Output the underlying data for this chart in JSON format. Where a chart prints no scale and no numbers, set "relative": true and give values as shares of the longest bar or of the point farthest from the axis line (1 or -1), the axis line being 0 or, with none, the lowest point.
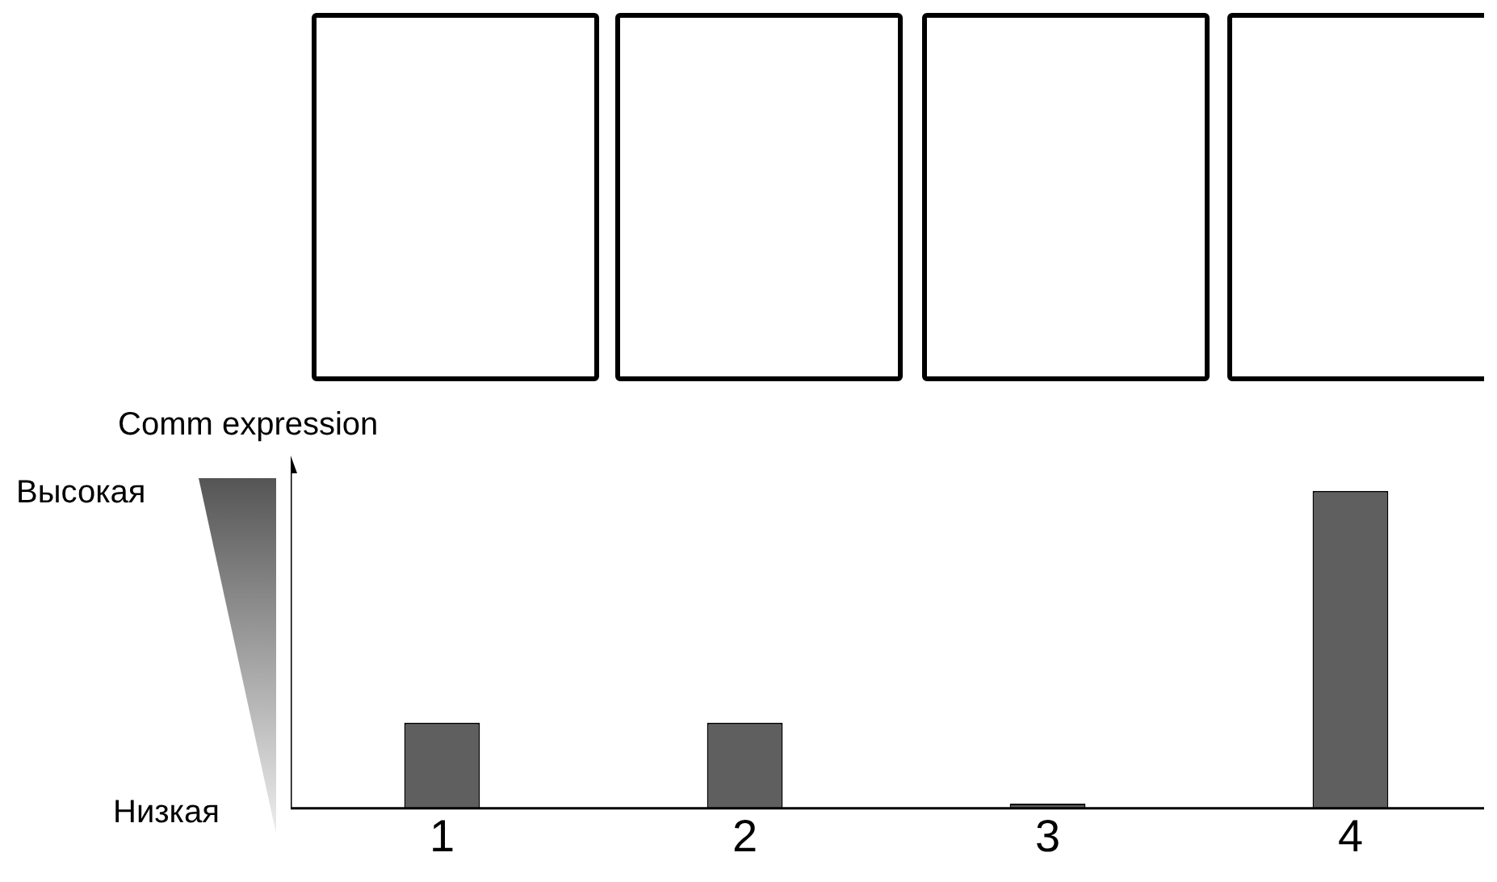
{
  "chart_data": {
    "type": "bar",
    "ylabel": "Comm expression",
    "categories": [
      "1",
      "2",
      "3",
      "4"
    ],
    "values": [
      0.27,
      0.27,
      0.015,
      1
    ],
    "color": "#5f5f5f",
    "relative": true,
    "annotations": [
      "Высокая",
      "Низкая"
    ]
  }
}
